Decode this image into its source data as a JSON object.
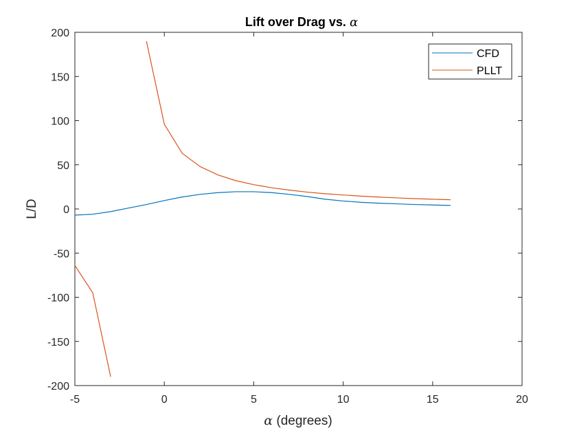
{
  "chart_data": {
    "type": "line",
    "title": "Lift over Drag vs. ",
    "title_symbol": "α",
    "xlabel_symbol": "α",
    "xlabel": " (degrees)",
    "ylabel": "L/D",
    "xlim": [
      -5,
      20
    ],
    "ylim": [
      -200,
      200
    ],
    "xticks": [
      -5,
      0,
      5,
      10,
      15,
      20
    ],
    "xtick_labels": [
      "-5",
      "0",
      "5",
      "10",
      "15",
      "20"
    ],
    "yticks": [
      -200,
      -150,
      -100,
      -50,
      0,
      50,
      100,
      150,
      200
    ],
    "ytick_labels": [
      "-200",
      "-150",
      "-100",
      "-50",
      "0",
      "50",
      "100",
      "150",
      "200"
    ],
    "grid": false,
    "legend_position": "top-right",
    "series": [
      {
        "name": "CFD",
        "color": "#0072BD",
        "x": [
          -5,
          -4,
          -3,
          -2,
          -1,
          0,
          1,
          2,
          3,
          4,
          5,
          6,
          7,
          8,
          9,
          10,
          11,
          12,
          13,
          14,
          15,
          16
        ],
        "y": [
          -7,
          -6,
          -3,
          1,
          5,
          9.5,
          13.5,
          16.5,
          18.5,
          19.5,
          19.5,
          18.5,
          16.5,
          14,
          11,
          9,
          7.5,
          6.5,
          5.8,
          5,
          4.5,
          4
        ]
      },
      {
        "name": "PLLT",
        "color": "#D95319",
        "segments": [
          {
            "x": [
              -5,
              -4,
              -3
            ],
            "y": [
              -64,
              -95,
              -190
            ]
          },
          {
            "x": [
              -1,
              0,
              1,
              2,
              3,
              4,
              5,
              6,
              7,
              8,
              9,
              10,
              11,
              12,
              13,
              14,
              15,
              16
            ],
            "y": [
              190,
              96,
              63,
              48,
              38.5,
              32,
              27.5,
              24,
              21.3,
              19,
              17.2,
              15.8,
              14.5,
              13.4,
              12.5,
              11.7,
              11,
              10.4
            ]
          }
        ]
      }
    ]
  }
}
